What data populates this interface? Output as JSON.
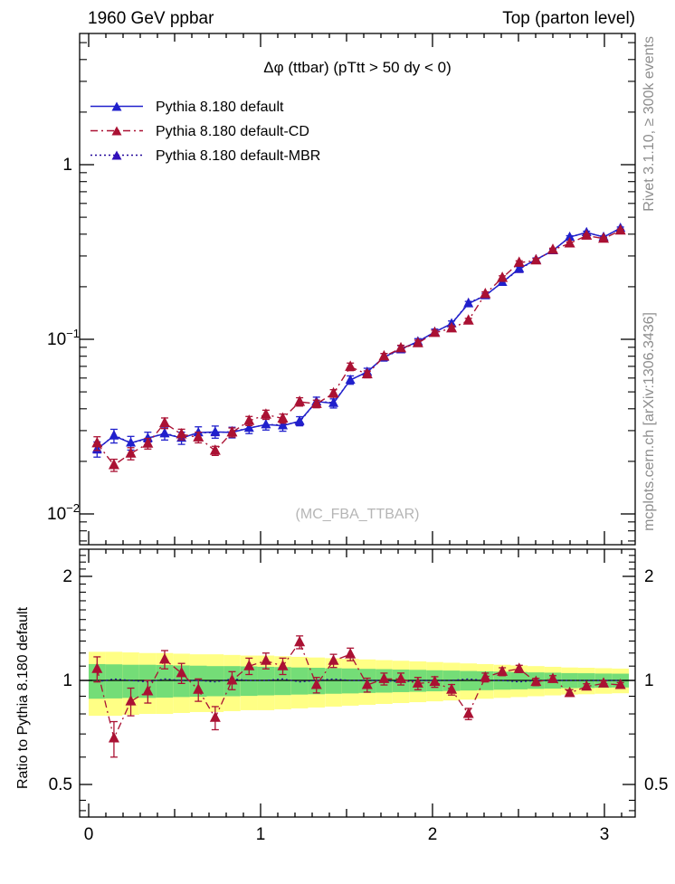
{
  "header": {
    "left": "1960 GeV ppbar",
    "right": "Top (parton level)"
  },
  "title": "Δφ (ttbar) (pTtt > 50 dy < 0)",
  "watermark": "(MC_FBA_TTBAR)",
  "side_notes": {
    "top": "Rivet 3.1.10, ≥ 300k events",
    "bottom": "mcplots.cern.ch [arXiv:1306.3436]"
  },
  "ratio_axis_label": "Ratio to Pythia 8.180 default",
  "legend": [
    {
      "label": "Pythia 8.180 default",
      "color": "#2020cc",
      "marker": "#2020cc",
      "style": "solid"
    },
    {
      "label": "Pythia 8.180 default-CD",
      "color": "#aa1133",
      "marker": "#aa1133",
      "style": "dashdot"
    },
    {
      "label": "Pythia 8.180 default-MBR",
      "color": "#22089a",
      "marker": "#3311bb",
      "style": "dotted"
    }
  ],
  "colors": {
    "default": "#2020cc",
    "cd": "#aa1133",
    "mbr": "#22089a",
    "band_green": "#74dd77",
    "band_yellow": "#ffff85",
    "ratio_line": "#000000",
    "note_gray": "#8e8e8e",
    "watermark_gray": "#b5b5b5"
  },
  "chart_data": {
    "type": "line",
    "xlabel_ticks": [
      {
        "v": 0,
        "label": "0"
      },
      {
        "v": 1,
        "label": "1"
      },
      {
        "v": 2,
        "label": "2"
      },
      {
        "v": 3,
        "label": "3"
      }
    ],
    "x_range": [
      0,
      3.1416
    ],
    "main_y_ticks": [
      {
        "v": 1,
        "mant": "1",
        "exp": null
      },
      {
        "v": 0.1,
        "mant": "10",
        "exp": "−1"
      },
      {
        "v": 0.01,
        "mant": "10",
        "exp": "−2"
      }
    ],
    "main_y_range": [
      0.0067,
      5.65
    ],
    "ratio_y_ticks": [
      {
        "v": 2,
        "label": "2"
      },
      {
        "v": 1,
        "label": "1"
      },
      {
        "v": 0.5,
        "label": "0.5"
      }
    ],
    "ratio_y_range": [
      0.403,
      2.39
    ],
    "bin_half_width": 0.0491,
    "x": [
      0.049,
      0.147,
      0.245,
      0.344,
      0.442,
      0.54,
      0.638,
      0.736,
      0.834,
      0.933,
      1.031,
      1.129,
      1.227,
      1.325,
      1.424,
      1.522,
      1.62,
      1.718,
      1.816,
      1.915,
      2.013,
      2.111,
      2.209,
      2.307,
      2.406,
      2.504,
      2.602,
      2.7,
      2.798,
      2.896,
      2.995,
      3.093
    ],
    "series": [
      {
        "name": "Pythia 8.180 default",
        "values": [
          0.0235,
          0.028,
          0.0255,
          0.0272,
          0.0288,
          0.0272,
          0.0292,
          0.0295,
          0.0293,
          0.031,
          0.0325,
          0.032,
          0.034,
          0.044,
          0.043,
          0.0585,
          0.065,
          0.079,
          0.088,
          0.097,
          0.11,
          0.123,
          0.16,
          0.178,
          0.212,
          0.254,
          0.286,
          0.322,
          0.385,
          0.409,
          0.385,
          0.433
        ],
        "rel_err": [
          0.1,
          0.09,
          0.09,
          0.08,
          0.08,
          0.08,
          0.08,
          0.08,
          0.07,
          0.07,
          0.07,
          0.07,
          0.06,
          0.06,
          0.06,
          0.055,
          0.05,
          0.05,
          0.045,
          0.04,
          0.04,
          0.035,
          0.03,
          0.03,
          0.028,
          0.025,
          0.022,
          0.02,
          0.018,
          0.017,
          0.016,
          0.015
        ]
      },
      {
        "name": "Pythia 8.180 default-CD",
        "ratio_to_default": [
          1.08,
          0.68,
          0.87,
          0.93,
          1.15,
          1.05,
          0.94,
          0.78,
          1.0,
          1.1,
          1.14,
          1.1,
          1.29,
          0.97,
          1.14,
          1.19,
          0.97,
          1.01,
          1.01,
          0.98,
          0.99,
          0.94,
          0.8,
          1.02,
          1.06,
          1.08,
          0.99,
          1.01,
          0.92,
          0.96,
          0.98,
          0.97
        ],
        "ratio_err": [
          0.09,
          0.08,
          0.08,
          0.07,
          0.07,
          0.07,
          0.07,
          0.06,
          0.06,
          0.06,
          0.06,
          0.06,
          0.055,
          0.05,
          0.05,
          0.05,
          0.045,
          0.04,
          0.04,
          0.04,
          0.035,
          0.033,
          0.03,
          0.03,
          0.028,
          0.026,
          0.024,
          0.022,
          0.02,
          0.018,
          0.017,
          0.016
        ]
      },
      {
        "name": "Pythia 8.180 default-MBR",
        "ratio_to_default": [
          0.99,
          1.01,
          1.0,
          0.99,
          1.01,
          1.0,
          1.0,
          0.99,
          1.01,
          1.0,
          1.0,
          1.01,
          0.99,
          1.0,
          1.01,
          1.0,
          1.0,
          1.0,
          0.99,
          1.0,
          1.0,
          1.0,
          1.01,
          1.0,
          1.0,
          0.99,
          1.0,
          1.0,
          1.0,
          1.0,
          1.0,
          1.0
        ]
      }
    ],
    "ratio_bands": {
      "yellow_half_width": [
        0.21,
        0.21,
        0.205,
        0.2,
        0.2,
        0.195,
        0.19,
        0.19,
        0.185,
        0.18,
        0.18,
        0.175,
        0.17,
        0.165,
        0.16,
        0.155,
        0.15,
        0.145,
        0.14,
        0.135,
        0.13,
        0.125,
        0.12,
        0.115,
        0.11,
        0.105,
        0.1,
        0.095,
        0.09,
        0.088,
        0.085,
        0.082
      ],
      "green_half_width": [
        0.115,
        0.113,
        0.11,
        0.11,
        0.108,
        0.105,
        0.103,
        0.1,
        0.1,
        0.098,
        0.095,
        0.093,
        0.09,
        0.088,
        0.085,
        0.083,
        0.08,
        0.078,
        0.075,
        0.073,
        0.07,
        0.068,
        0.065,
        0.063,
        0.06,
        0.058,
        0.055,
        0.053,
        0.05,
        0.049,
        0.047,
        0.046
      ]
    }
  }
}
